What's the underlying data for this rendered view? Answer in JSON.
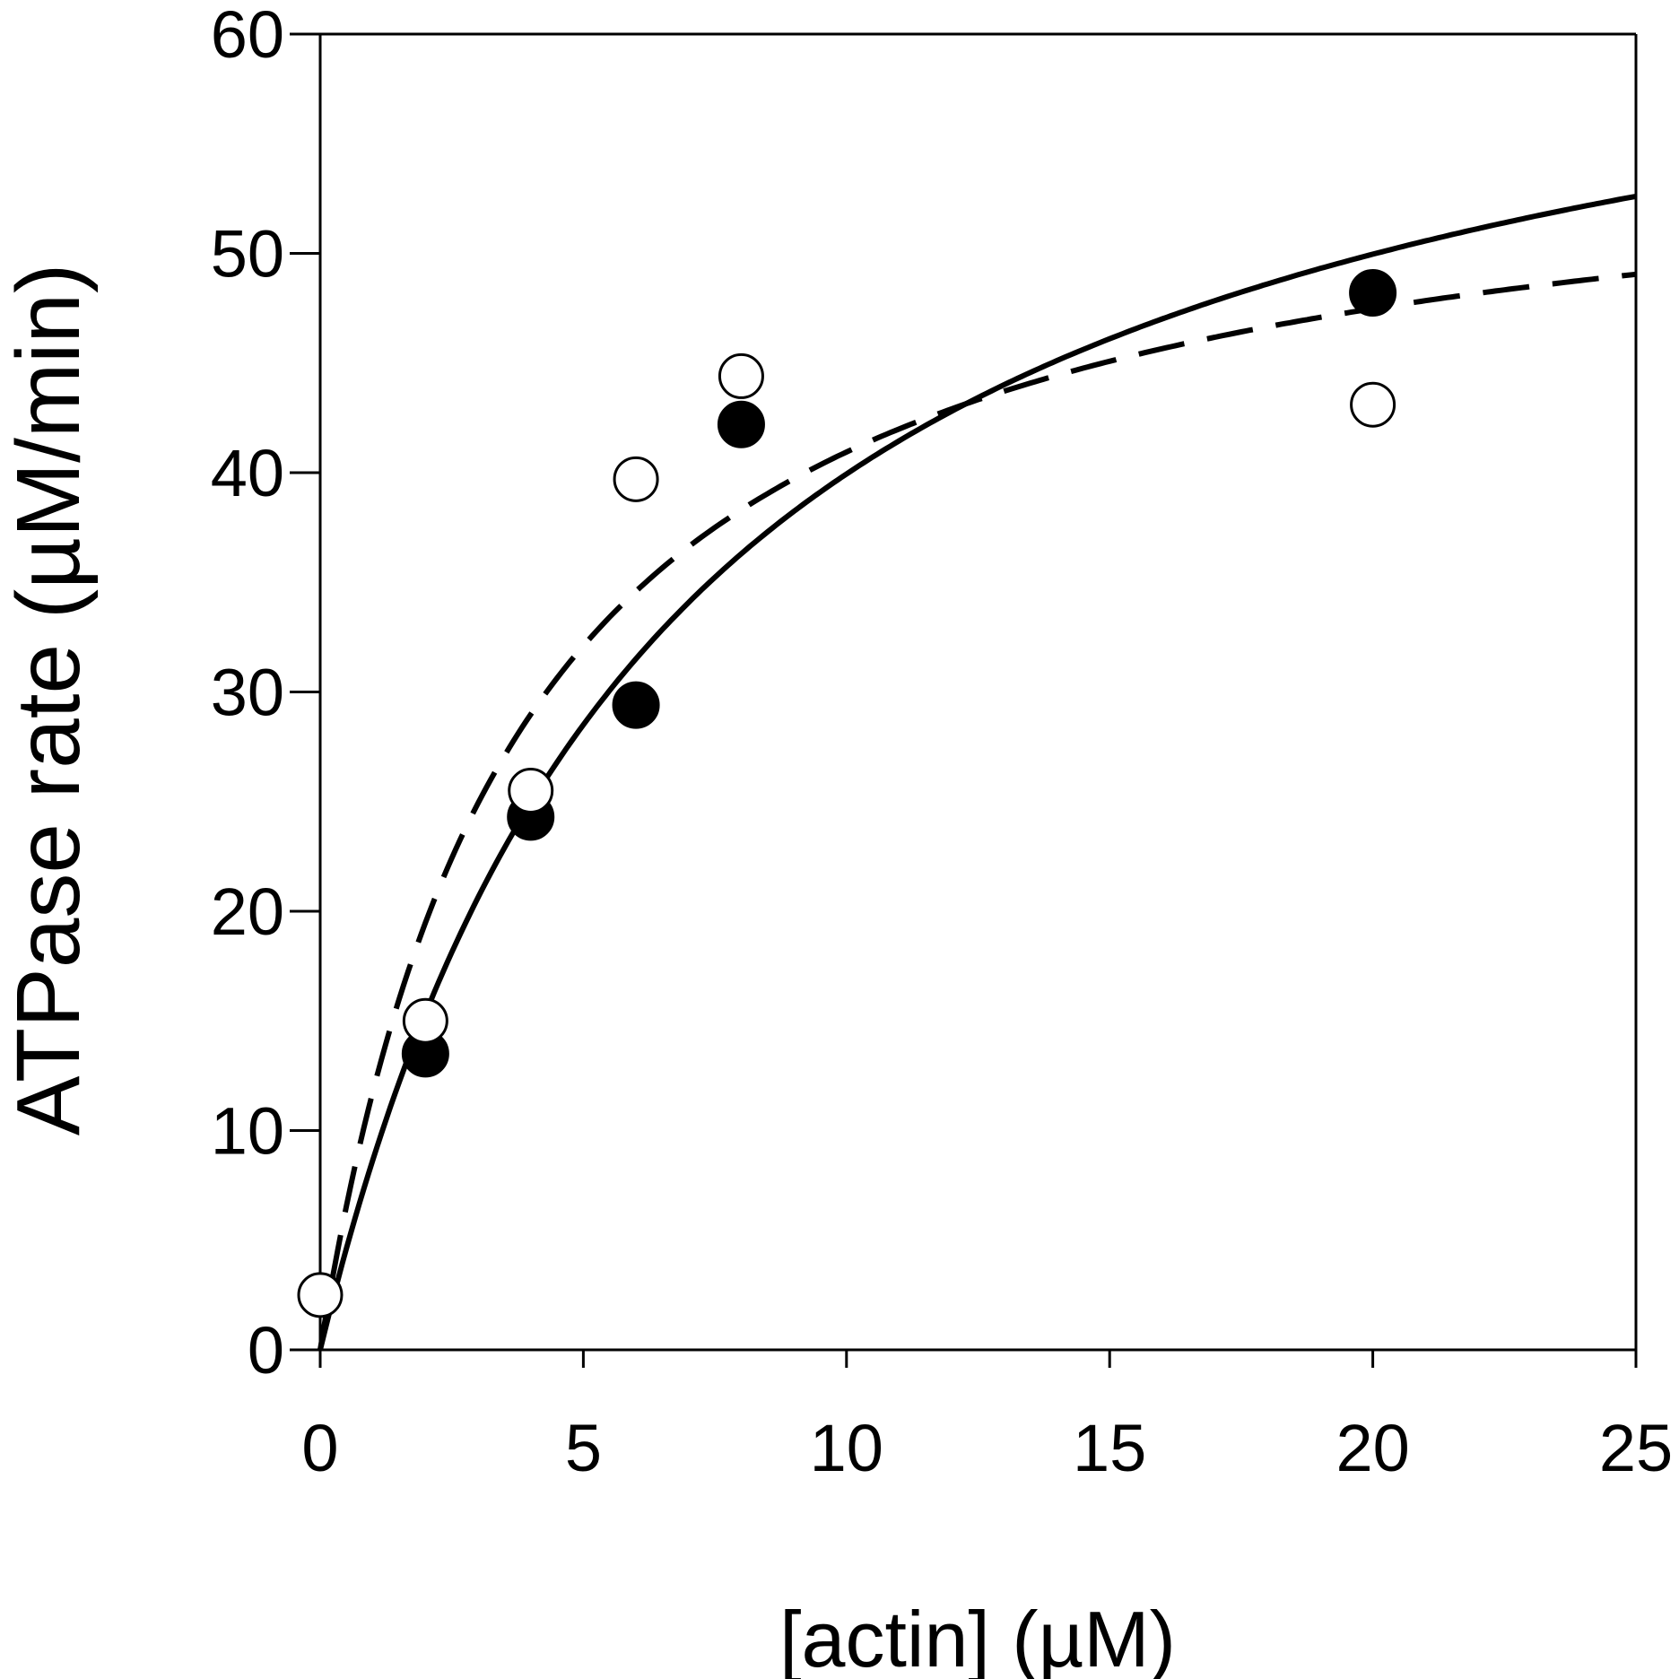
{
  "chart_data": {
    "type": "scatter",
    "title": "",
    "xlabel": "[actin] (µM)",
    "ylabel": "ATPase rate (µM/min)",
    "xlim": [
      0,
      25
    ],
    "ylim": [
      0,
      60
    ],
    "xticks": [
      0,
      5,
      10,
      15,
      20,
      25
    ],
    "yticks": [
      0,
      10,
      20,
      30,
      40,
      50,
      60
    ],
    "grid": false,
    "series": [
      {
        "name": "filled circles",
        "marker": "filled-circle",
        "color": "#000000",
        "points": [
          [
            2,
            13.5
          ],
          [
            4,
            24.3
          ],
          [
            6,
            29.4
          ],
          [
            8,
            42.2
          ],
          [
            20,
            48.2
          ]
        ]
      },
      {
        "name": "open circles",
        "marker": "open-circle",
        "color": "#000000",
        "points": [
          [
            0,
            2.5
          ],
          [
            2,
            15.0
          ],
          [
            4,
            25.5
          ],
          [
            6,
            39.7
          ],
          [
            8,
            44.4
          ],
          [
            20,
            43.1
          ]
        ]
      }
    ],
    "fits": [
      {
        "name": "solid fit",
        "style": "solid",
        "model": "hyperbolic",
        "vmax": 66.7,
        "km": 6.7
      },
      {
        "name": "dashed fit",
        "style": "dashed",
        "model": "hyperbolic",
        "vmax": 56.5,
        "km": 3.8
      }
    ]
  }
}
